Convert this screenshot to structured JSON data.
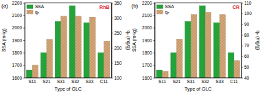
{
  "chart_data": [
    {
      "type": "bar",
      "annotations": [
        "(a)",
        "RhB"
      ],
      "x_label": "Type of GLC",
      "y_label": "SSA (m²/g)",
      "y2_label": "qₑ (mg/g)",
      "categories": [
        "S11",
        "S21",
        "S31",
        "S32",
        "S33",
        "C11"
      ],
      "series": [
        {
          "name": "SSA",
          "color": "#23a33a",
          "values": [
            1660,
            1800,
            2050,
            2175,
            2040,
            1800
          ]
        },
        {
          "name": "qₑ",
          "color": "#d8a878",
          "axis": "y2",
          "values": [
            142,
            228,
            305,
            305,
            302,
            222
          ]
        }
      ],
      "ylim": [
        1600,
        2200
      ],
      "yticks": [
        1600,
        1700,
        1800,
        1900,
        2000,
        2100,
        2200
      ],
      "y2lim": [
        100,
        350
      ],
      "y2ticks": [
        100,
        150,
        200,
        250,
        300,
        350
      ],
      "legend": "upper left"
    },
    {
      "type": "bar",
      "annotations": [
        "(b)",
        "CR"
      ],
      "x_label": "Type of GLC",
      "y_label": "SSA (m²/g)",
      "y2_label": "qₑ (mg/g)",
      "categories": [
        "S11",
        "S21",
        "S31",
        "S32",
        "S33",
        "C11"
      ],
      "series": [
        {
          "name": "SSA",
          "color": "#23a33a",
          "values": [
            1660,
            1800,
            2050,
            2175,
            2040,
            1800
          ]
        },
        {
          "name": "qₑ",
          "color": "#d8a878",
          "axis": "y2",
          "values": [
            46,
            76,
            99,
            101,
            99,
            56
          ]
        }
      ],
      "ylim": [
        1600,
        2200
      ],
      "yticks": [
        1600,
        1700,
        1800,
        1900,
        2000,
        2100,
        2200
      ],
      "y2lim": [
        40,
        110
      ],
      "y2ticks": [
        40,
        50,
        60,
        70,
        80,
        90,
        100,
        110
      ],
      "legend": "upper left"
    }
  ]
}
